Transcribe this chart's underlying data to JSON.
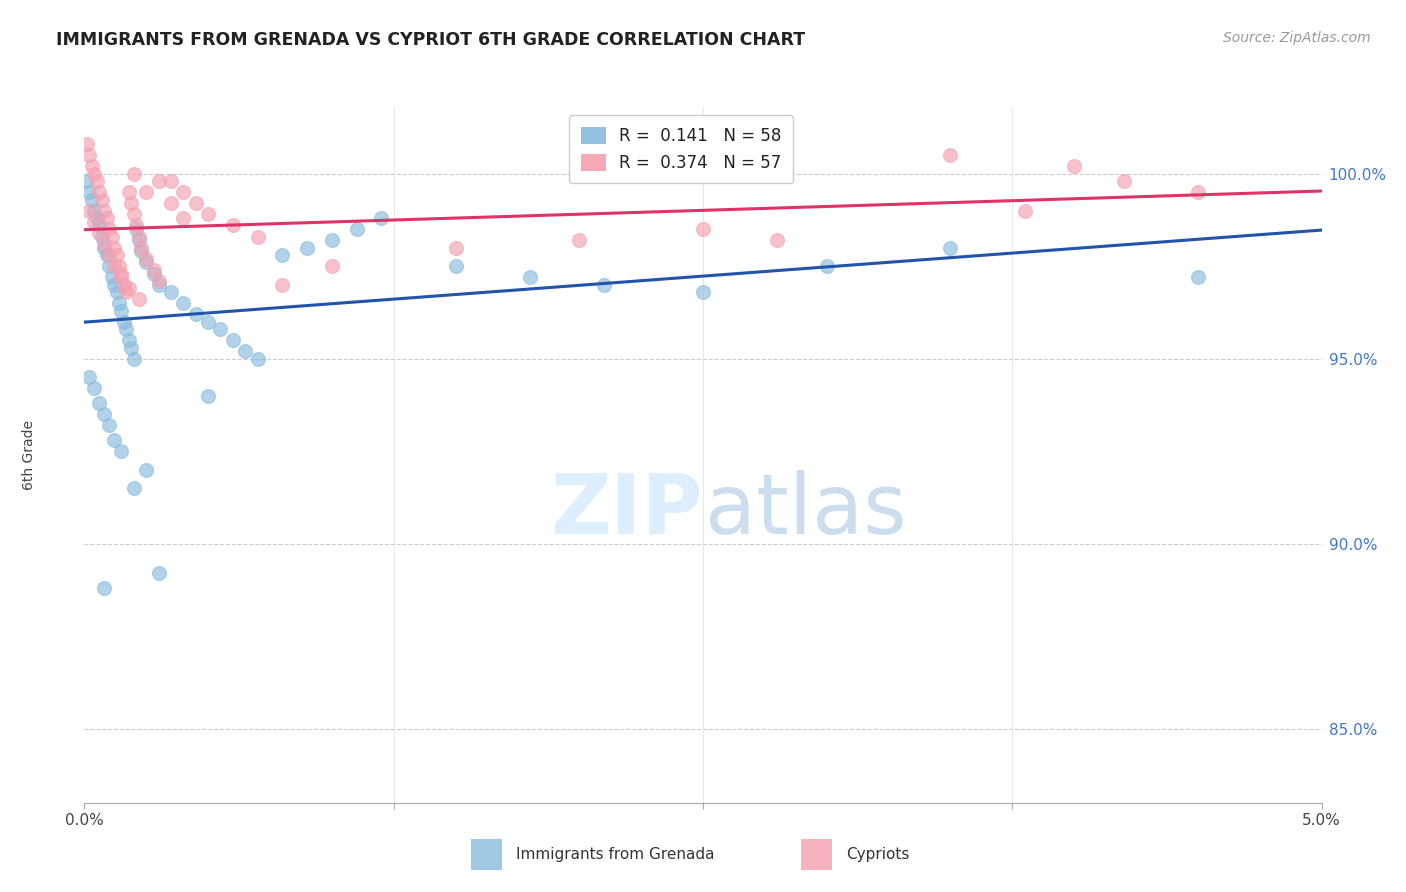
{
  "title": "IMMIGRANTS FROM GRENADA VS CYPRIOT 6TH GRADE CORRELATION CHART",
  "source": "Source: ZipAtlas.com",
  "ylabel": "6th Grade",
  "xlim": [
    0.0,
    5.0
  ],
  "ylim": [
    83.0,
    101.8
  ],
  "yticks": [
    85.0,
    90.0,
    95.0,
    100.0
  ],
  "ytick_labels": [
    "85.0%",
    "90.0%",
    "95.0%",
    "100.0%"
  ],
  "grenada_color": "#88bbdd",
  "cypriot_color": "#f4a0b0",
  "grenada_R": 0.141,
  "grenada_N": 58,
  "cypriot_R": 0.374,
  "cypriot_N": 57,
  "grenada_line_color": "#2255aa",
  "cypriot_line_color": "#dd3366",
  "background_color": "#ffffff",
  "grenada_x": [
    0.01,
    0.02,
    0.03,
    0.04,
    0.05,
    0.06,
    0.07,
    0.08,
    0.09,
    0.1,
    0.11,
    0.12,
    0.13,
    0.14,
    0.15,
    0.16,
    0.17,
    0.18,
    0.19,
    0.2,
    0.21,
    0.22,
    0.23,
    0.25,
    0.28,
    0.3,
    0.35,
    0.4,
    0.45,
    0.5,
    0.55,
    0.6,
    0.65,
    0.7,
    0.8,
    0.9,
    1.0,
    1.1,
    1.2,
    1.5,
    1.8,
    2.1,
    2.5,
    3.0,
    3.5,
    4.5,
    0.02,
    0.04,
    0.06,
    0.08,
    0.1,
    0.12,
    0.15,
    0.08,
    0.3,
    0.5,
    0.2,
    0.25
  ],
  "grenada_y": [
    99.8,
    99.5,
    99.3,
    99.0,
    98.8,
    98.6,
    98.3,
    98.0,
    97.8,
    97.5,
    97.2,
    97.0,
    96.8,
    96.5,
    96.3,
    96.0,
    95.8,
    95.5,
    95.3,
    95.0,
    98.5,
    98.2,
    97.9,
    97.6,
    97.3,
    97.0,
    96.8,
    96.5,
    96.2,
    96.0,
    95.8,
    95.5,
    95.2,
    95.0,
    97.8,
    98.0,
    98.2,
    98.5,
    98.8,
    97.5,
    97.2,
    97.0,
    96.8,
    97.5,
    98.0,
    97.2,
    94.5,
    94.2,
    93.8,
    93.5,
    93.2,
    92.8,
    92.5,
    88.8,
    89.2,
    94.0,
    91.5,
    92.0
  ],
  "cypriot_x": [
    0.01,
    0.02,
    0.03,
    0.04,
    0.05,
    0.06,
    0.07,
    0.08,
    0.09,
    0.1,
    0.11,
    0.12,
    0.13,
    0.14,
    0.15,
    0.16,
    0.17,
    0.18,
    0.19,
    0.2,
    0.21,
    0.22,
    0.23,
    0.25,
    0.28,
    0.3,
    0.35,
    0.4,
    0.45,
    0.5,
    0.6,
    0.7,
    0.8,
    1.0,
    1.5,
    2.0,
    0.02,
    0.04,
    0.06,
    0.08,
    0.1,
    0.12,
    0.15,
    0.18,
    0.22,
    3.5,
    4.0,
    4.2,
    4.5,
    0.3,
    0.2,
    0.25,
    0.35,
    0.4,
    2.5,
    2.8,
    3.8
  ],
  "cypriot_y": [
    100.8,
    100.5,
    100.2,
    100.0,
    99.8,
    99.5,
    99.3,
    99.0,
    98.8,
    98.5,
    98.3,
    98.0,
    97.8,
    97.5,
    97.3,
    97.0,
    96.8,
    99.5,
    99.2,
    98.9,
    98.6,
    98.3,
    98.0,
    97.7,
    97.4,
    97.1,
    99.8,
    99.5,
    99.2,
    98.9,
    98.6,
    98.3,
    97.0,
    97.5,
    98.0,
    98.2,
    99.0,
    98.7,
    98.4,
    98.1,
    97.8,
    97.5,
    97.2,
    96.9,
    96.6,
    100.5,
    100.2,
    99.8,
    99.5,
    99.8,
    100.0,
    99.5,
    99.2,
    98.8,
    98.5,
    98.2,
    99.0
  ]
}
